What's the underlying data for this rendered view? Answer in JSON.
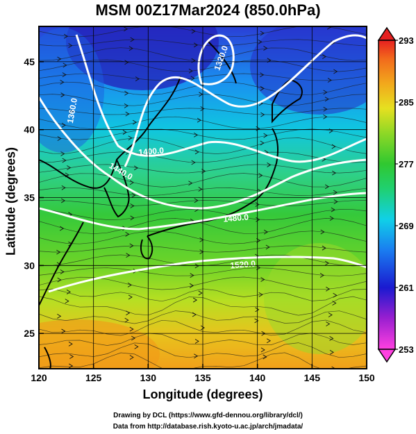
{
  "title": "MSM 00Z17Mar2024 (850.0hPa)",
  "xlabel": "Longitude (degrees)",
  "ylabel": "Latitude  (degrees)",
  "credits": [
    "Drawing by DCL (https://www.gfd-dennou.org/library/dcl/)",
    "Data from http://database.rish.kyoto-u.ac.jp/arch/jmadata/"
  ],
  "map": {
    "lon_range": [
      120,
      150
    ],
    "lat_range": [
      22.4,
      47.6
    ],
    "lon_ticks": [
      120,
      125,
      130,
      135,
      140,
      145,
      150
    ],
    "lat_ticks": [
      25,
      30,
      35,
      40,
      45
    ],
    "grid": true
  },
  "colorbar": {
    "min": 253,
    "max": 293,
    "tick_values": [
      293,
      285,
      277,
      269,
      261,
      253
    ]
  },
  "contours": [
    {
      "label": "1320.0"
    },
    {
      "label": "1360.0"
    },
    {
      "label": "1400.0"
    },
    {
      "label": "1440.0"
    },
    {
      "label": "1480.0"
    },
    {
      "label": "1520.0"
    }
  ]
}
